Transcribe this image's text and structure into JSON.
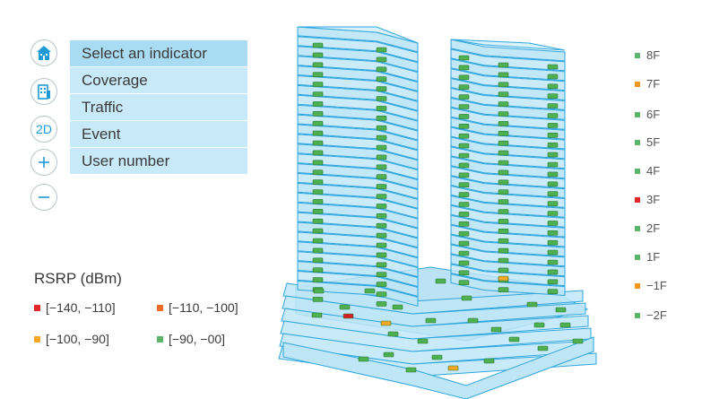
{
  "menu": {
    "items": [
      "Select an indicator",
      "Coverage",
      "Traffic",
      "Event",
      "User number"
    ]
  },
  "toolbar": {
    "buttons": [
      {
        "name": "building-icon",
        "icon": "building-3d-icon"
      },
      {
        "name": "floor-icon",
        "icon": "building-floors-icon"
      },
      {
        "name": "view-2d",
        "label": "2D"
      },
      {
        "name": "zoom-in",
        "label": "+"
      },
      {
        "name": "zoom-out",
        "label": "−"
      }
    ]
  },
  "legend": {
    "title": "RSRP (dBm)",
    "items": [
      {
        "label": "[−140, −110]",
        "color": "#e02a2a"
      },
      {
        "label": "[−110, −100]",
        "color": "#f06a2a"
      },
      {
        "label": "[−100, −90]",
        "color": "#f5a623"
      },
      {
        "label": "[−90, −00]",
        "color": "#5bb56a"
      }
    ]
  },
  "floors": [
    {
      "label": "8F",
      "color": "#5bb56a"
    },
    {
      "label": "7F",
      "color": "#f5961e"
    },
    {
      "label": "6F",
      "color": "#5bb56a"
    },
    {
      "label": "5F",
      "color": "#5bb56a"
    },
    {
      "label": "4F",
      "color": "#5bb56a"
    },
    {
      "label": "3F",
      "color": "#e02a2a"
    },
    {
      "label": "2F",
      "color": "#5bb56a"
    },
    {
      "label": "1F",
      "color": "#5bb56a"
    },
    {
      "label": "−1F",
      "color": "#f5961e"
    },
    {
      "label": "−2F",
      "color": "#5bb56a"
    }
  ],
  "colors": {
    "glass": "#bfe6f7",
    "glass_edge": "#2ea6dc",
    "accent": "#1e9ad6"
  }
}
